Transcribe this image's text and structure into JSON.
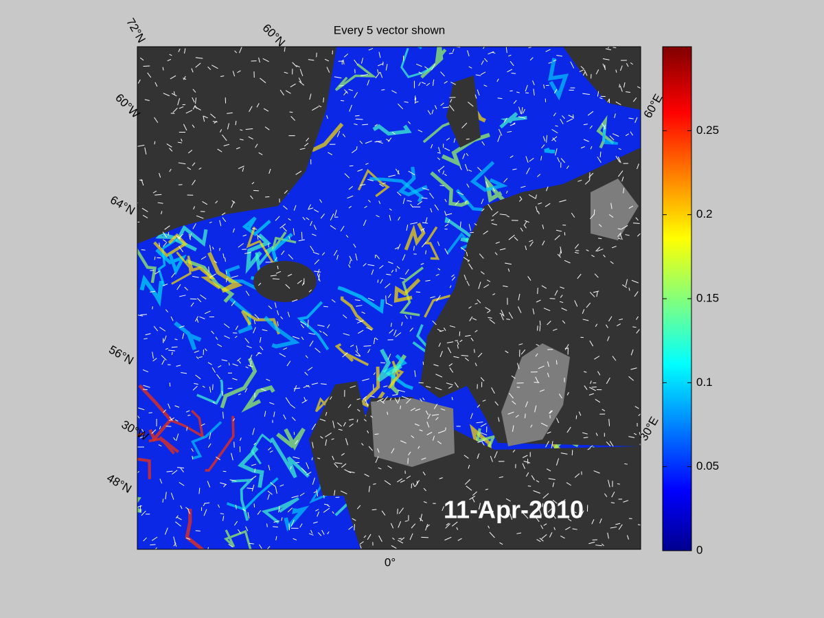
{
  "title": "Every 5 vector shown",
  "date": "11-Apr-2010",
  "graticule_labels": [
    "72°N",
    "60°N",
    "60°W",
    "64°N",
    "56°N",
    "30°W",
    "48°N",
    "0°",
    "60°E",
    "30°E"
  ],
  "colorbar": {
    "lim": [
      0,
      0.3
    ],
    "ticks": [
      0,
      0.05,
      0.1,
      0.15,
      0.2,
      0.25
    ]
  }
}
